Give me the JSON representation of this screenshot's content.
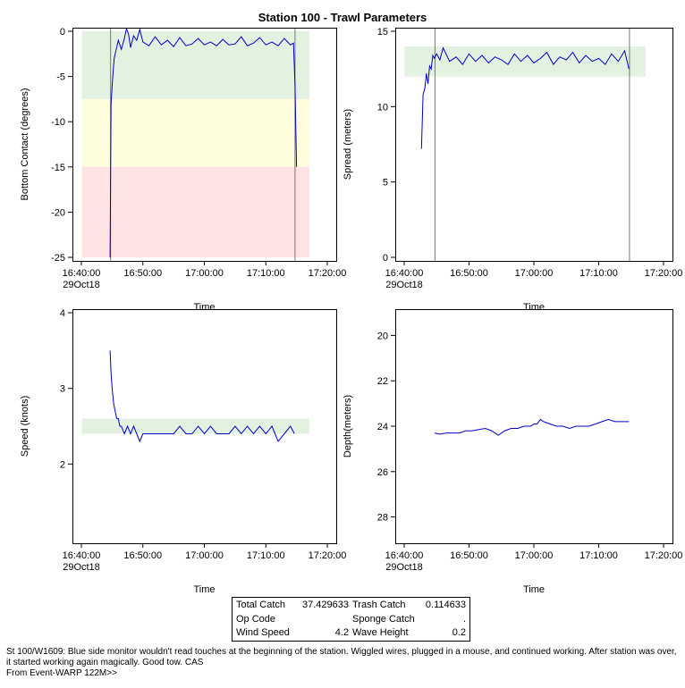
{
  "title": "Station 100 - Trawl Parameters",
  "colors": {
    "series": "#0000cc",
    "green_band": "#e3f1e0",
    "yellow_band": "#fdfcdc",
    "red_band": "#fde3e3",
    "event_line": "#777777",
    "axis": "#000000"
  },
  "chart_data": [
    {
      "id": "bottom-contact",
      "type": "line",
      "ylabel": "Bottom Contact (degrees)",
      "xlabel": "Time",
      "ylim": [
        -25,
        0
      ],
      "yticks": [
        0,
        -5,
        -10,
        -15,
        -20,
        -25
      ],
      "xlim": [
        "16:40:00",
        "17:20:00"
      ],
      "xticks": [
        "16:40:00",
        "16:50:00",
        "17:00:00",
        "17:10:00",
        "17:20:00"
      ],
      "xdate_label": "29Oct18",
      "bands": [
        {
          "from": -7.5,
          "to": 0,
          "color": "green"
        },
        {
          "from": -15,
          "to": -7.5,
          "color": "yellow"
        },
        {
          "from": -25,
          "to": -15,
          "color": "red"
        }
      ],
      "event_lines": [
        "16:44:45",
        "17:14:45"
      ],
      "series": [
        {
          "x": [
            "16:44:40",
            "16:44:50",
            "16:45:00",
            "16:45:10",
            "16:45:20",
            "16:45:40",
            "16:46:00",
            "16:46:30",
            "16:47:00",
            "16:47:20",
            "16:47:40",
            "16:48:00",
            "16:48:30",
            "16:49:00",
            "16:49:30",
            "16:50:00",
            "16:51:00",
            "16:52:00",
            "16:53:00",
            "16:54:00",
            "16:55:00",
            "16:56:00",
            "16:57:00",
            "16:58:00",
            "16:59:00",
            "17:00:00",
            "17:01:00",
            "17:02:00",
            "17:03:00",
            "17:04:00",
            "17:05:00",
            "17:06:00",
            "17:07:00",
            "17:08:00",
            "17:09:00",
            "17:10:00",
            "17:11:00",
            "17:12:00",
            "17:13:00",
            "17:14:00",
            "17:14:30",
            "17:14:45",
            "17:15:00"
          ],
          "values": [
            -25,
            -8,
            -6,
            -4.5,
            -3,
            -2,
            -1,
            -2,
            -0.8,
            0.3,
            -0.3,
            -1.8,
            -0.5,
            -1,
            0.2,
            -1.2,
            -1.6,
            -0.6,
            -1.5,
            -1,
            -1.7,
            -0.7,
            -1.6,
            -1.4,
            -0.8,
            -1.5,
            -1.2,
            -1.6,
            -0.9,
            -1.5,
            -1.4,
            -0.6,
            -1.6,
            -1.3,
            -0.7,
            -1.5,
            -1.2,
            -1.6,
            -0.8,
            -1.5,
            -1.3,
            -6,
            -15
          ]
        }
      ]
    },
    {
      "id": "spread",
      "type": "line",
      "ylabel": "Spread (meters)",
      "xlabel": "Time",
      "ylim": [
        0,
        15
      ],
      "yticks": [
        0,
        5,
        10,
        15
      ],
      "xlim": [
        "16:40:00",
        "17:20:00"
      ],
      "xticks": [
        "16:40:00",
        "16:50:00",
        "17:00:00",
        "17:10:00",
        "17:20:00"
      ],
      "xdate_label": "29Oct18",
      "bands": [
        {
          "from": 12,
          "to": 14,
          "color": "green"
        }
      ],
      "event_lines": [
        "16:44:45",
        "17:14:45"
      ],
      "series": [
        {
          "x": [
            "16:42:40",
            "16:42:55",
            "16:43:10",
            "16:43:25",
            "16:43:40",
            "16:43:55",
            "16:44:10",
            "16:44:25",
            "16:44:40",
            "16:45:00",
            "16:45:30",
            "16:46:00",
            "16:47:00",
            "16:48:00",
            "16:49:00",
            "16:50:00",
            "16:51:00",
            "16:52:00",
            "16:53:00",
            "16:54:00",
            "16:55:00",
            "16:56:00",
            "16:57:00",
            "16:58:00",
            "16:59:00",
            "17:00:00",
            "17:01:00",
            "17:02:00",
            "17:03:00",
            "17:04:00",
            "17:05:00",
            "17:06:00",
            "17:07:00",
            "17:08:00",
            "17:09:00",
            "17:10:00",
            "17:11:00",
            "17:12:00",
            "17:13:00",
            "17:14:00",
            "17:14:40"
          ],
          "values": [
            7.2,
            10.8,
            11.2,
            12.2,
            11.5,
            12.7,
            12.5,
            13.4,
            13.2,
            13.5,
            13.1,
            13.9,
            13.0,
            13.3,
            12.8,
            13.5,
            13.0,
            13.4,
            12.9,
            13.3,
            13.1,
            12.8,
            13.5,
            13.0,
            13.4,
            12.9,
            13.2,
            13.6,
            12.8,
            13.3,
            13.1,
            13.6,
            12.9,
            13.4,
            13.0,
            13.2,
            12.8,
            13.5,
            13.0,
            13.7,
            12.5
          ]
        }
      ]
    },
    {
      "id": "speed",
      "type": "line",
      "ylabel": "Speed (knots)",
      "xlabel": "Time",
      "ylim": [
        1,
        4
      ],
      "yticks": [
        2,
        3,
        4
      ],
      "xlim": [
        "16:40:00",
        "17:20:00"
      ],
      "xticks": [
        "16:40:00",
        "16:50:00",
        "17:00:00",
        "17:10:00",
        "17:20:00"
      ],
      "xdate_label": "29Oct18",
      "bands": [
        {
          "from": 2.4,
          "to": 2.6,
          "color": "green"
        }
      ],
      "event_lines": [],
      "series": [
        {
          "x": [
            "16:44:40",
            "16:44:50",
            "16:45:00",
            "16:45:15",
            "16:45:30",
            "16:45:45",
            "16:46:00",
            "16:46:15",
            "16:46:30",
            "16:47:00",
            "16:47:30",
            "16:48:00",
            "16:48:30",
            "16:49:00",
            "16:49:30",
            "16:50:00",
            "16:51:00",
            "16:52:00",
            "16:53:00",
            "16:54:00",
            "16:55:00",
            "16:56:00",
            "16:57:00",
            "16:58:00",
            "16:59:00",
            "17:00:00",
            "17:01:00",
            "17:02:00",
            "17:03:00",
            "17:04:00",
            "17:05:00",
            "17:06:00",
            "17:07:00",
            "17:08:00",
            "17:09:00",
            "17:10:00",
            "17:11:00",
            "17:12:00",
            "17:13:00",
            "17:14:00",
            "17:14:40"
          ],
          "values": [
            3.5,
            3.2,
            3.0,
            2.8,
            2.7,
            2.6,
            2.6,
            2.5,
            2.5,
            2.4,
            2.5,
            2.4,
            2.5,
            2.4,
            2.3,
            2.4,
            2.4,
            2.4,
            2.4,
            2.4,
            2.4,
            2.5,
            2.4,
            2.4,
            2.5,
            2.4,
            2.5,
            2.4,
            2.4,
            2.4,
            2.5,
            2.4,
            2.5,
            2.4,
            2.5,
            2.4,
            2.5,
            2.3,
            2.4,
            2.5,
            2.4
          ]
        }
      ]
    },
    {
      "id": "depth",
      "type": "line",
      "ylabel": "Depth(meters)",
      "xlabel": "Time",
      "ylim": [
        29,
        19
      ],
      "yticks": [
        20,
        22,
        24,
        26,
        28
      ],
      "xlim": [
        "16:40:00",
        "17:20:00"
      ],
      "xticks": [
        "16:40:00",
        "16:50:00",
        "17:00:00",
        "17:10:00",
        "17:20:00"
      ],
      "xdate_label": "29Oct18",
      "bands": [],
      "event_lines": [],
      "series": [
        {
          "x": [
            "16:44:40",
            "16:45:30",
            "16:46:30",
            "16:47:30",
            "16:48:30",
            "16:49:30",
            "16:50:30",
            "16:51:30",
            "16:52:30",
            "16:53:30",
            "16:54:30",
            "16:55:30",
            "16:56:30",
            "16:57:30",
            "16:58:30",
            "16:59:30",
            "17:00:00",
            "17:00:30",
            "17:01:00",
            "17:01:30",
            "17:02:30",
            "17:03:30",
            "17:04:30",
            "17:05:30",
            "17:06:30",
            "17:07:30",
            "17:08:30",
            "17:09:30",
            "17:10:30",
            "17:11:30",
            "17:12:30",
            "17:13:30",
            "17:14:40"
          ],
          "values": [
            24.3,
            24.35,
            24.3,
            24.3,
            24.3,
            24.2,
            24.2,
            24.15,
            24.1,
            24.2,
            24.4,
            24.2,
            24.1,
            24.1,
            24.0,
            24.0,
            23.9,
            23.9,
            23.7,
            23.8,
            23.9,
            24.0,
            24.0,
            24.1,
            24.0,
            24.0,
            24.0,
            23.9,
            23.8,
            23.7,
            23.8,
            23.8,
            23.8
          ]
        }
      ]
    }
  ],
  "stats": {
    "total_catch_label": "Total Catch",
    "total_catch_value": "37.429633",
    "trash_catch_label": "Trash Catch",
    "trash_catch_value": "0.114633",
    "op_code_label": "Op Code",
    "op_code_value": "",
    "sponge_catch_label": "Sponge Catch",
    "sponge_catch_value": ".",
    "wind_speed_label": "Wind Speed",
    "wind_speed_value": "4.2",
    "wave_height_label": "Wave Height",
    "wave_height_value": "0.2"
  },
  "notes": {
    "comment": "St 100/W1609: Blue side monitor wouldn't read touches at the beginning of the station. Wiggled wires, plugged in a mouse, and continued working. After station was over, it started working again magically. Good tow. CAS",
    "source": "From Event-WARP 122M>>"
  }
}
